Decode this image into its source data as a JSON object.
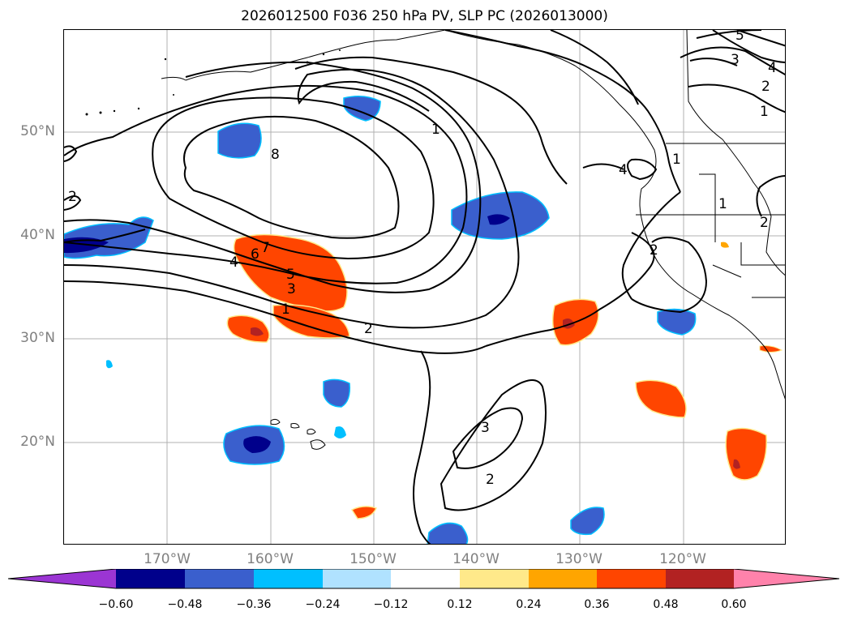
{
  "title": "2026012500 F036 250 hPa PV, SLP PC (2026013000)",
  "map": {
    "lat_labels": [
      "50°N",
      "40°N",
      "30°N",
      "20°N"
    ],
    "lon_labels": [
      "170°W",
      "160°W",
      "150°W",
      "140°W",
      "130°W",
      "120°W"
    ],
    "contour_labels": [
      "8",
      "7",
      "6",
      "5",
      "4",
      "3",
      "1",
      "2",
      "1",
      "1",
      "1",
      "2",
      "3",
      "4",
      "5",
      "1",
      "2",
      "2",
      "3",
      "2",
      "4",
      "2"
    ]
  },
  "colorbar": {
    "ticks": [
      "−0.60",
      "−0.48",
      "−0.36",
      "−0.24",
      "−0.12",
      "0.12",
      "0.24",
      "0.36",
      "0.48",
      "0.60"
    ],
    "colors": [
      "#9b35d3",
      "#00008b",
      "#3a5fcd",
      "#00bfff",
      "#b0e2ff",
      "#ffffff",
      "#ffe98a",
      "#ffa500",
      "#ff4500",
      "#b22222",
      "#ff82ab"
    ]
  }
}
